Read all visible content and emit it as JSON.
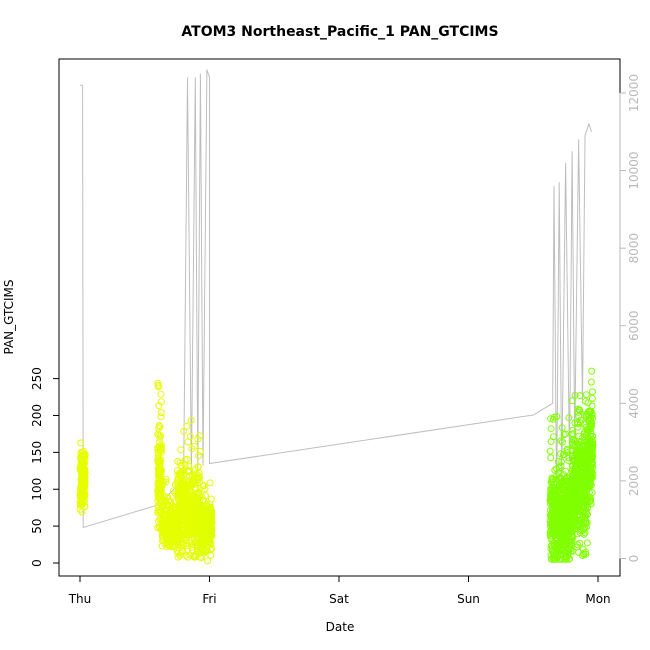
{
  "chart_data": {
    "type": "scatter",
    "title": "ATOM3 Northeast_Pacific_1 PAN_GTCIMS",
    "xlabel": "Date",
    "ylabel": "PAN_GTCIMS",
    "x_ticks": [
      "Thu",
      "Fri",
      "Sat",
      "Sun",
      "Mon"
    ],
    "y_ticks": [
      "0",
      "50",
      "100",
      "150",
      "200",
      "250"
    ],
    "y2_ticks": [
      "0",
      "2000",
      "4000",
      "6000",
      "8000",
      "10000",
      "12000"
    ],
    "x_range_days": [
      -0.2,
      4.1
    ],
    "ylim": [
      -5,
      275
    ],
    "y2lim": [
      -250,
      13000
    ],
    "colors": {
      "frame": "#000000",
      "altitude_line": "#bebebe",
      "low_values": "#e6ff00",
      "high_values": "#80ff00"
    },
    "series": [
      {
        "kind": "points",
        "segments": [
          {
            "day_start": 0.0,
            "day_end": 0.04,
            "low": 62,
            "high": 171,
            "mean": 115,
            "n": 160
          },
          {
            "day_start": 0.6,
            "day_end": 0.63,
            "low": 48,
            "high": 255,
            "mean": 118,
            "n": 120
          },
          {
            "day_start": 0.63,
            "day_end": 0.75,
            "low": 22,
            "high": 120,
            "mean": 50,
            "n": 260
          },
          {
            "day_start": 0.75,
            "day_end": 0.93,
            "low": 8,
            "high": 196,
            "mean": 72,
            "n": 420
          },
          {
            "day_start": 0.93,
            "day_end": 1.02,
            "low": 3,
            "high": 112,
            "mean": 50,
            "n": 260
          },
          {
            "day_start": 3.63,
            "day_end": 3.8,
            "low": 5,
            "high": 200,
            "mean": 62,
            "n": 520
          },
          {
            "day_start": 3.8,
            "day_end": 3.92,
            "low": 8,
            "high": 233,
            "mean": 110,
            "n": 420
          },
          {
            "day_start": 3.92,
            "day_end": 3.96,
            "low": 80,
            "high": 265,
            "mean": 150,
            "n": 140
          }
        ]
      },
      {
        "kind": "line",
        "axis": "right",
        "points": [
          [
            0.0,
            12200
          ],
          [
            0.02,
            12200
          ],
          [
            0.025,
            800
          ],
          [
            0.62,
            1400
          ],
          [
            0.7,
            1700
          ],
          [
            0.76,
            1900
          ],
          [
            0.78,
            300
          ],
          [
            0.8,
            2100
          ],
          [
            0.83,
            12400
          ],
          [
            0.86,
            2200
          ],
          [
            0.89,
            12400
          ],
          [
            0.91,
            2300
          ],
          [
            0.93,
            12500
          ],
          [
            0.95,
            2400
          ],
          [
            0.98,
            12600
          ],
          [
            1.0,
            12400
          ],
          [
            1.0,
            2450
          ],
          [
            3.5,
            3700
          ],
          [
            3.65,
            4000
          ],
          [
            3.66,
            9600
          ],
          [
            3.68,
            1500
          ],
          [
            3.7,
            9700
          ],
          [
            3.72,
            2000
          ],
          [
            3.75,
            10200
          ],
          [
            3.78,
            2500
          ],
          [
            3.8,
            10500
          ],
          [
            3.82,
            3000
          ],
          [
            3.85,
            10800
          ],
          [
            3.88,
            4000
          ],
          [
            3.9,
            10900
          ],
          [
            3.93,
            11200
          ],
          [
            3.95,
            11000
          ]
        ]
      }
    ]
  }
}
